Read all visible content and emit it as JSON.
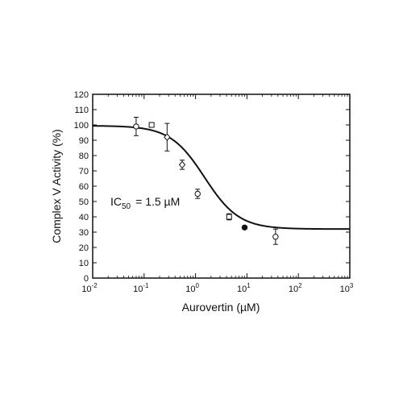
{
  "chart_data": {
    "type": "scatter",
    "title": "",
    "xlabel": "Aurovertin (µM)",
    "ylabel": "Complex V Activity (%)",
    "x_scale": "log",
    "xlim": [
      0.01,
      1000
    ],
    "ylim": [
      0,
      120
    ],
    "x_ticks": [
      0.01,
      0.1,
      1,
      10,
      100,
      1000
    ],
    "x_tick_labels": [
      {
        "base": "10",
        "exp": "-2"
      },
      {
        "base": "10",
        "exp": "-1"
      },
      {
        "base": "10",
        "exp": "0"
      },
      {
        "base": "10",
        "exp": "1"
      },
      {
        "base": "10",
        "exp": "2"
      },
      {
        "base": "10",
        "exp": "3"
      }
    ],
    "y_ticks": [
      0,
      10,
      20,
      30,
      40,
      50,
      60,
      70,
      80,
      90,
      100,
      110,
      120
    ],
    "grid": false,
    "series": [
      {
        "points": [
          {
            "x": 0.07,
            "y": 99,
            "err": 6,
            "marker": "circle"
          },
          {
            "x": 0.14,
            "y": 100,
            "err": 1.5,
            "marker": "square"
          },
          {
            "x": 0.28,
            "y": 92,
            "err": 9,
            "marker": "diamond"
          },
          {
            "x": 0.55,
            "y": 74,
            "err": 3,
            "marker": "diamond"
          },
          {
            "x": 1.1,
            "y": 55,
            "err": 3,
            "marker": "circle"
          },
          {
            "x": 4.5,
            "y": 40,
            "err": 2,
            "marker": "square"
          },
          {
            "x": 9.0,
            "y": 33,
            "err": 1,
            "marker": "filled-circle"
          },
          {
            "x": 36,
            "y": 27,
            "err": 5,
            "marker": "circle"
          }
        ]
      }
    ],
    "fit_curve": {
      "top": 99.5,
      "bottom": 32,
      "ic50": 1.5,
      "hill": 1.3
    },
    "annotation": {
      "prefix": "IC",
      "subscript": "50",
      "text": "=   1.5 µM"
    }
  }
}
